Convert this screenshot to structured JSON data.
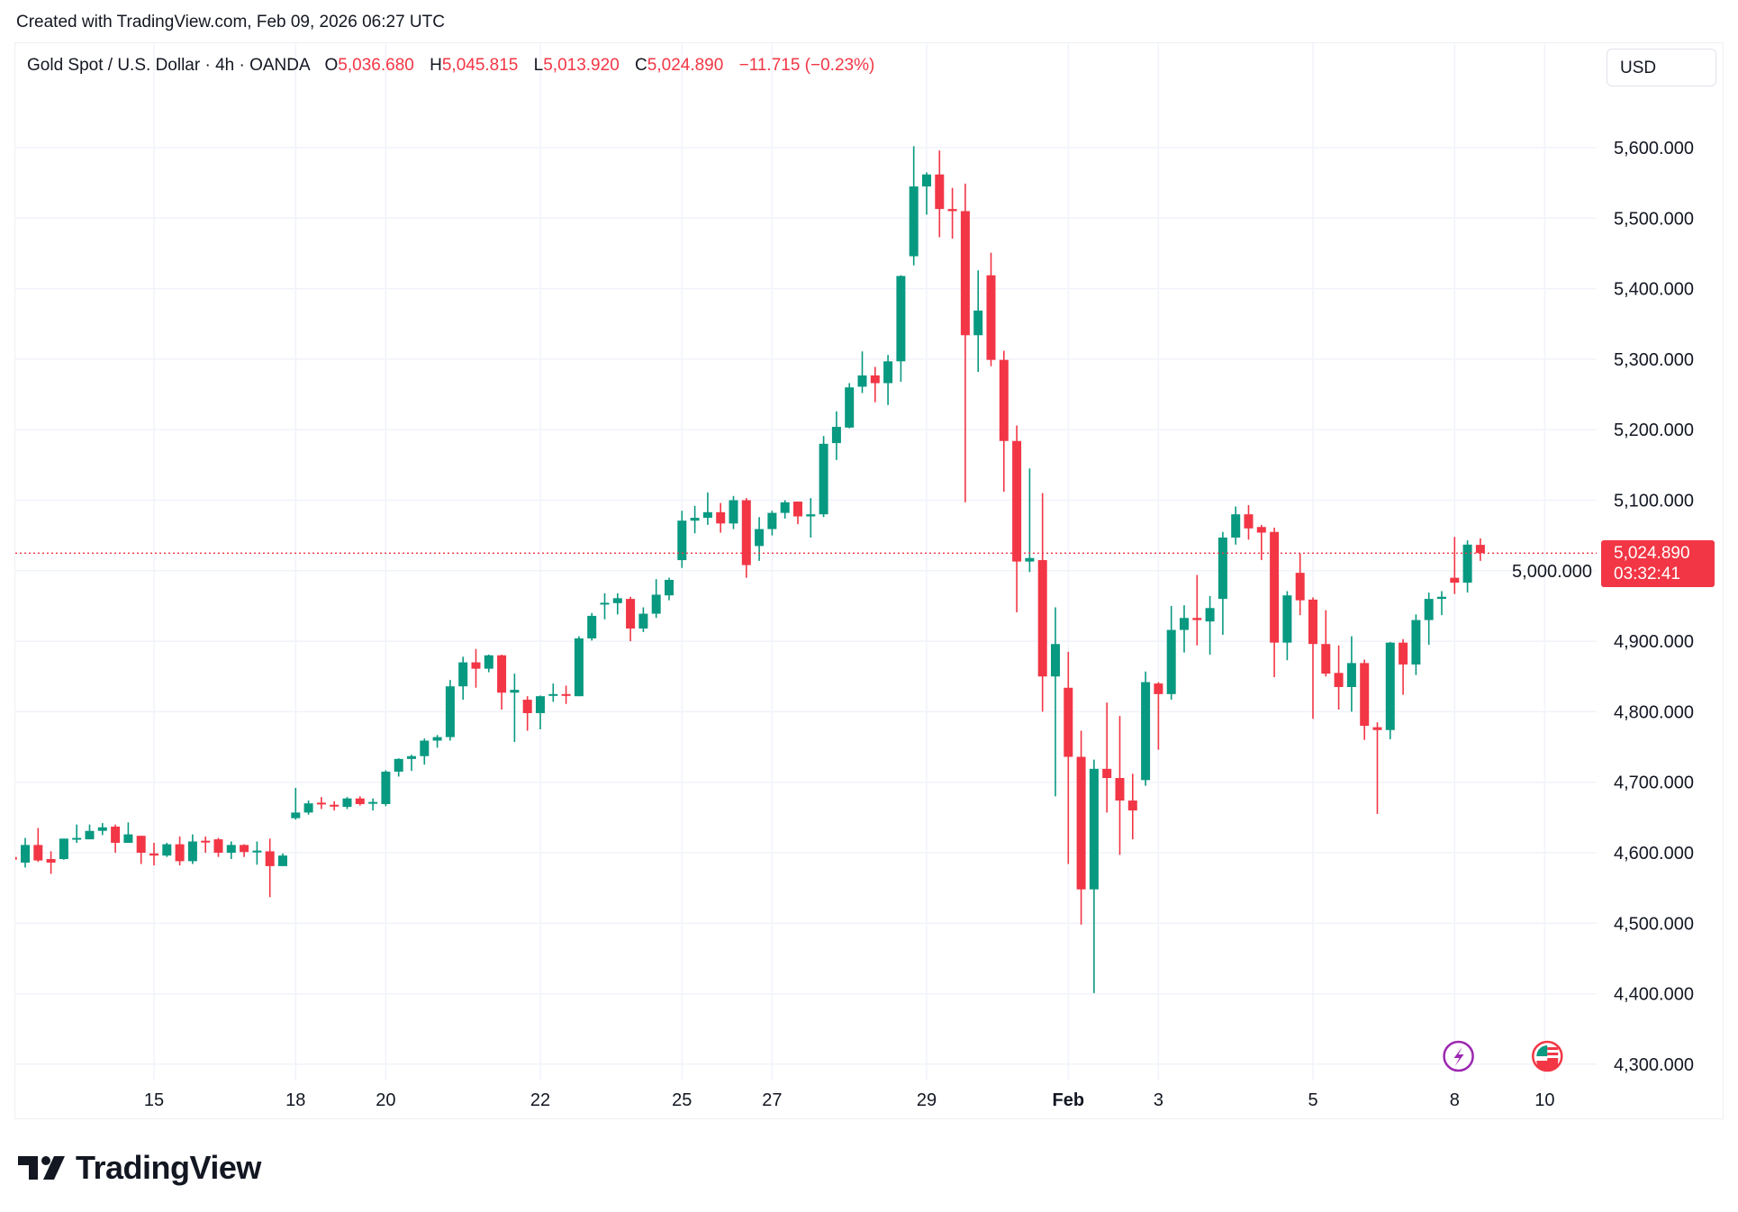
{
  "header": {
    "created": "Created with TradingView.com, Feb 09, 2026 06:27 UTC"
  },
  "legend": {
    "symbol": "Gold Spot / U.S. Dollar · 4h · OANDA",
    "o_label": "O",
    "o": "5,036.680",
    "h_label": "H",
    "h": "5,045.815",
    "l_label": "L",
    "l": "5,013.920",
    "c_label": "C",
    "c": "5,024.890",
    "change": "−11.715 (−0.23%)"
  },
  "currency": "USD",
  "price_label": {
    "price": "5,024.890",
    "countdown": "03:32:41"
  },
  "logo": {
    "text": "TradingView"
  },
  "colors": {
    "up": "#089981",
    "down": "#F23645",
    "grid": "#f0f3fa",
    "event_purple": "#9c27b0"
  },
  "icons": [
    "lightning-event-icon",
    "us-flag-event-icon"
  ],
  "chart_data": {
    "type": "candlestick",
    "title": "Gold Spot / U.S. Dollar · 4h · OANDA",
    "ylim": [
      4260,
      5660
    ],
    "y_ticks": [
      5600,
      5500,
      5400,
      5300,
      5200,
      5100,
      5000,
      4900,
      4800,
      4700,
      4600,
      4500,
      4400,
      4300
    ],
    "y_tick_labels": [
      "5,600.000",
      "5,500.000",
      "5,400.000",
      "5,300.000",
      "5,200.000",
      "5,100.000",
      "5,000.000",
      "4,900.000",
      "4,800.000",
      "4,700.000",
      "4,600.000",
      "4,500.000",
      "4,400.000",
      "4,300.000"
    ],
    "x_ticks": [
      {
        "label": "15",
        "index": 11
      },
      {
        "label": "18",
        "index": 22
      },
      {
        "label": "20",
        "index": 29
      },
      {
        "label": "22",
        "index": 41
      },
      {
        "label": "25",
        "index": 52
      },
      {
        "label": "27",
        "index": 59
      },
      {
        "label": "29",
        "index": 71
      },
      {
        "label": "Feb",
        "index": 82,
        "bold": true
      },
      {
        "label": "3",
        "index": 89
      },
      {
        "label": "5",
        "index": 101
      },
      {
        "label": "8",
        "index": 112
      },
      {
        "label": "10",
        "index": 119
      }
    ],
    "last_price": 5024.89,
    "events": [
      {
        "type": "lightning",
        "index": 112.3
      },
      {
        "type": "us-flag",
        "index": 119.2
      }
    ],
    "ohlc_fields": [
      "open",
      "high",
      "low",
      "close"
    ],
    "candles": [
      [
        4594,
        4598,
        4585,
        4590
      ],
      [
        4586,
        4621,
        4579,
        4611
      ],
      [
        4611,
        4635,
        4587,
        4589
      ],
      [
        4591,
        4602,
        4570,
        4586
      ],
      [
        4591,
        4620,
        4590,
        4620
      ],
      [
        4620,
        4640,
        4614,
        4621
      ],
      [
        4619,
        4640,
        4619,
        4631
      ],
      [
        4631,
        4642,
        4625,
        4636
      ],
      [
        4637,
        4640,
        4600,
        4614
      ],
      [
        4614,
        4643,
        4614,
        4626
      ],
      [
        4624,
        4624,
        4584,
        4600
      ],
      [
        4599,
        4614,
        4582,
        4596
      ],
      [
        4596,
        4614,
        4594,
        4612
      ],
      [
        4612,
        4623,
        4582,
        4588
      ],
      [
        4588,
        4626,
        4584,
        4616
      ],
      [
        4617,
        4623,
        4600,
        4616
      ],
      [
        4619,
        4621,
        4594,
        4600
      ],
      [
        4600,
        4616,
        4591,
        4611
      ],
      [
        4611,
        4612,
        4594,
        4601
      ],
      [
        4602,
        4616,
        4583,
        4603
      ],
      [
        4602,
        4620,
        4537,
        4581
      ],
      [
        4581,
        4599,
        4581,
        4596
      ],
      [
        4649,
        4692,
        4647,
        4657
      ],
      [
        4657,
        4674,
        4654,
        4670
      ],
      [
        4671,
        4679,
        4662,
        4670
      ],
      [
        4668,
        4673,
        4660,
        4666
      ],
      [
        4665,
        4679,
        4662,
        4677
      ],
      [
        4677,
        4680,
        4667,
        4669
      ],
      [
        4671,
        4677,
        4660,
        4672
      ],
      [
        4669,
        4717,
        4666,
        4715
      ],
      [
        4715,
        4734,
        4708,
        4733
      ],
      [
        4733,
        4739,
        4716,
        4737
      ],
      [
        4737,
        4762,
        4725,
        4759
      ],
      [
        4759,
        4767,
        4749,
        4764
      ],
      [
        4764,
        4845,
        4759,
        4836
      ],
      [
        4836,
        4878,
        4817,
        4870
      ],
      [
        4870,
        4889,
        4834,
        4861
      ],
      [
        4861,
        4881,
        4856,
        4880
      ],
      [
        4880,
        4881,
        4803,
        4827
      ],
      [
        4827,
        4854,
        4757,
        4831
      ],
      [
        4817,
        4822,
        4773,
        4798
      ],
      [
        4798,
        4823,
        4775,
        4822
      ],
      [
        4824,
        4840,
        4814,
        4825
      ],
      [
        4825,
        4837,
        4811,
        4824
      ],
      [
        4822,
        4907,
        4822,
        4904
      ],
      [
        4904,
        4940,
        4901,
        4936
      ],
      [
        4954,
        4968,
        4931,
        4954.5
      ],
      [
        4954,
        4968,
        4938,
        4961
      ],
      [
        4960,
        4963,
        4900,
        4918
      ],
      [
        4918,
        4948,
        4913,
        4939
      ],
      [
        4939,
        4988,
        4933,
        4966
      ],
      [
        4965,
        4990,
        4958,
        4987
      ],
      [
        5015,
        5085,
        5004,
        5071
      ],
      [
        5071,
        5092,
        5053,
        5075
      ],
      [
        5075,
        5111,
        5065,
        5083
      ],
      [
        5083,
        5096,
        5054,
        5067
      ],
      [
        5067,
        5106,
        5059,
        5100
      ],
      [
        5100,
        5103,
        4990,
        5008
      ],
      [
        5035,
        5076,
        5014,
        5059
      ],
      [
        5059,
        5085,
        5050,
        5082
      ],
      [
        5082,
        5100,
        5074,
        5097
      ],
      [
        5098,
        5098,
        5066,
        5077
      ],
      [
        5077,
        5103,
        5047,
        5080
      ],
      [
        5080,
        5191,
        5076,
        5180
      ],
      [
        5181,
        5226,
        5157,
        5204
      ],
      [
        5203,
        5266,
        5202,
        5260
      ],
      [
        5261,
        5311,
        5252,
        5277
      ],
      [
        5277,
        5289,
        5239,
        5266
      ],
      [
        5266,
        5306,
        5235,
        5297
      ],
      [
        5297,
        5419,
        5268,
        5418
      ],
      [
        5446,
        5602,
        5433,
        5545
      ],
      [
        5545,
        5565,
        5505,
        5562
      ],
      [
        5562,
        5596,
        5473,
        5513
      ],
      [
        5513,
        5543,
        5471,
        5510
      ],
      [
        5510,
        5549,
        5097,
        5334
      ],
      [
        5334,
        5426,
        5282,
        5369
      ],
      [
        5419,
        5451,
        5290,
        5299
      ],
      [
        5299,
        5312,
        5112,
        5184
      ],
      [
        5184,
        5206,
        4941,
        5013
      ],
      [
        5013,
        5145,
        4998,
        5018
      ],
      [
        5015,
        5110,
        4800,
        4850
      ],
      [
        4850,
        4948,
        4680,
        4896
      ],
      [
        4834,
        4885,
        4584,
        4736
      ],
      [
        4736,
        4773,
        4498,
        4548
      ],
      [
        4548,
        4732,
        4401,
        4719
      ],
      [
        4719,
        4813,
        4657,
        4706
      ],
      [
        4706,
        4794,
        4597,
        4674
      ],
      [
        4674,
        4712,
        4619,
        4660
      ],
      [
        4703,
        4857,
        4695,
        4842
      ],
      [
        4840,
        4842,
        4746,
        4825
      ],
      [
        4825,
        4950,
        4817,
        4916
      ],
      [
        4916,
        4951,
        4884,
        4933
      ],
      [
        4933,
        4994,
        4894,
        4930
      ],
      [
        4928,
        4964,
        4881,
        4947
      ],
      [
        4960,
        5055,
        4909,
        5047
      ],
      [
        5047,
        5091,
        5037,
        5080
      ],
      [
        5080,
        5093,
        5044,
        5060
      ],
      [
        5062,
        5065,
        5015,
        5054
      ],
      [
        5055,
        5061,
        4849,
        4898
      ],
      [
        4898,
        4971,
        4873,
        4965
      ],
      [
        4997,
        5024,
        4937,
        4958
      ],
      [
        4959,
        4962,
        4790,
        4896
      ],
      [
        4896,
        4944,
        4850,
        4854
      ],
      [
        4855,
        4894,
        4803,
        4835
      ],
      [
        4835,
        4907,
        4800,
        4869
      ],
      [
        4869,
        4874,
        4760,
        4780
      ],
      [
        4778,
        4785,
        4655,
        4774
      ],
      [
        4774,
        4899,
        4761,
        4898
      ],
      [
        4898,
        4903,
        4824,
        4867
      ],
      [
        4867,
        4938,
        4852,
        4930
      ],
      [
        4930,
        4969,
        4895,
        4960
      ],
      [
        4960,
        4971,
        4937,
        4963
      ],
      [
        4990,
        5048,
        4967,
        4983
      ],
      [
        4983,
        5043,
        4969,
        5037
      ],
      [
        5036.68,
        5045.815,
        5013.92,
        5024.89
      ]
    ]
  }
}
